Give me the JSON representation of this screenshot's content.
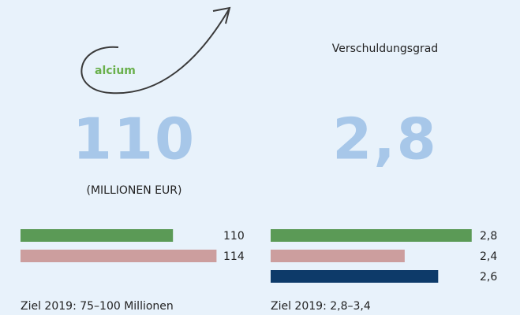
{
  "logo": "alcium",
  "chart_data": [
    {
      "type": "hbar",
      "headline": "110",
      "unit": "(MILLIONEN EUR)",
      "values": [
        110,
        114
      ],
      "colors": [
        "#5b9a56",
        "#cc9e9e"
      ],
      "xlim": [
        96,
        116
      ],
      "note": "Ziel 2019: 75–100 Millionen"
    },
    {
      "type": "hbar",
      "title": "Verschuldungsgrad",
      "headline": "2,8",
      "values": [
        2.8,
        2.4,
        2.6
      ],
      "value_labels": [
        "2,8",
        "2,4",
        "2,6"
      ],
      "colors": [
        "#5b9a56",
        "#cc9e9e",
        "#0d3a69"
      ],
      "xlim": [
        1.6,
        2.9
      ],
      "note": "Ziel 2019: 2,8–3,4"
    }
  ]
}
